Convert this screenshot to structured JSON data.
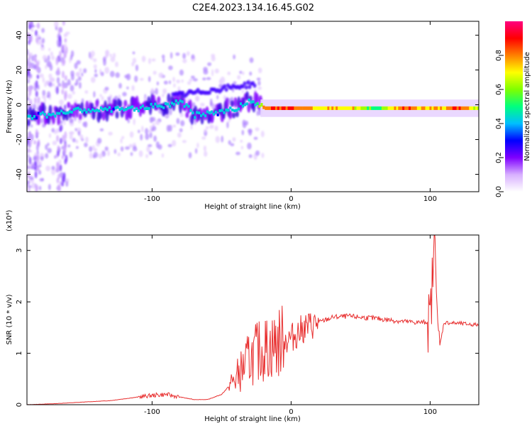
{
  "title": "C2E4.2023.134.16.45.G02",
  "chart_data": [
    {
      "type": "heatmap",
      "xlabel": "Height of straight line (km)",
      "ylabel": "Frequency (Hz)",
      "xlim": [
        -190,
        135
      ],
      "ylim": [
        -50,
        48
      ],
      "x_ticks": [
        -100,
        0,
        100
      ],
      "y_ticks": [
        -40,
        -20,
        0,
        20,
        40
      ],
      "colorbar": {
        "label": "Normalized spectral amplitude",
        "range": [
          0,
          1
        ],
        "ticks": [
          0.0,
          0.2,
          0.4,
          0.6,
          0.8
        ],
        "colors": [
          "#ffffff",
          "#d8b0ff",
          "#7f00ff",
          "#0000ff",
          "#00bfff",
          "#00ff7f",
          "#7fff00",
          "#ffff00",
          "#ff8000",
          "#ff0000",
          "#ff0080"
        ]
      },
      "ridge": {
        "x": [
          -190,
          -170,
          -150,
          -130,
          -110,
          -90,
          -80,
          -70,
          -60,
          -50,
          -40,
          -30,
          -22,
          -20,
          0,
          20,
          40,
          60,
          80,
          100,
          120,
          135
        ],
        "freq": [
          -7,
          -5,
          -3,
          -3,
          -2,
          0,
          2,
          -6,
          -5,
          -4,
          -2,
          2,
          0,
          -2,
          -2,
          -2,
          -2,
          -2,
          -2,
          -2,
          -2,
          -2
        ],
        "amplitude": [
          0.3,
          0.3,
          0.3,
          0.3,
          0.3,
          0.35,
          0.35,
          0.3,
          0.3,
          0.3,
          0.3,
          0.3,
          0.6,
          0.9,
          0.9,
          0.7,
          0.75,
          0.5,
          0.85,
          0.7,
          0.85,
          0.6
        ]
      }
    },
    {
      "type": "line",
      "xlabel": "Height of straight line (km)",
      "ylabel": "SNR (10 * v/v)",
      "y_multiplier": "(x10⁴)",
      "xlim": [
        -190,
        135
      ],
      "ylim": [
        0,
        3.3
      ],
      "x_ticks": [
        -100,
        0,
        100
      ],
      "y_ticks": [
        0,
        1,
        2,
        3
      ],
      "color": "#e83030",
      "series": [
        {
          "x": [
            -190,
            -170,
            -150,
            -130,
            -110,
            -100,
            -90,
            -80,
            -70,
            -60,
            -50,
            -40,
            -35,
            -30,
            -25,
            -20,
            -15,
            -10,
            -5,
            0,
            5,
            10,
            15,
            20,
            25,
            30,
            40,
            50,
            60,
            70,
            80,
            90,
            95,
            100,
            102,
            104,
            106,
            110,
            120,
            135
          ],
          "values": [
            0.0,
            0.02,
            0.05,
            0.08,
            0.15,
            0.18,
            0.2,
            0.15,
            0.1,
            0.1,
            0.2,
            0.5,
            0.7,
            0.9,
            1.0,
            1.1,
            1.1,
            1.2,
            1.25,
            1.3,
            1.4,
            1.5,
            1.55,
            1.6,
            1.65,
            1.7,
            1.72,
            1.7,
            1.68,
            1.65,
            1.62,
            1.6,
            1.6,
            1.62,
            2.6,
            3.3,
            1.0,
            1.6,
            1.58,
            1.55
          ]
        }
      ]
    }
  ]
}
